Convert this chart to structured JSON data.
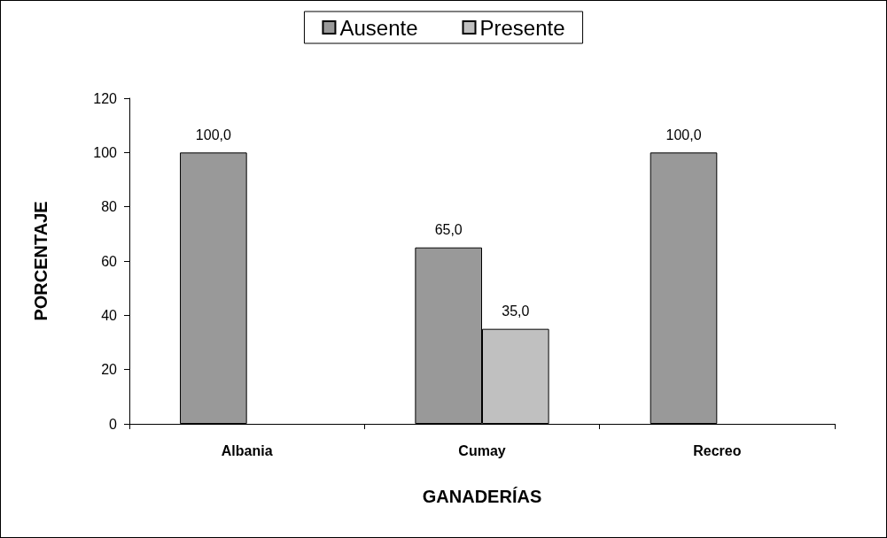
{
  "chart_data": {
    "type": "bar",
    "xlabel": "GANADERÍAS",
    "ylabel": "PORCENTAJE",
    "categories": [
      "Albania",
      "Cumay",
      "Recreo"
    ],
    "series": [
      {
        "name": "Ausente",
        "color": "#999999",
        "values": [
          100,
          65,
          100
        ],
        "value_labels": [
          "100,0",
          "65,0",
          "100,0"
        ]
      },
      {
        "name": "Presente",
        "color": "#c0c0c0",
        "values": [
          null,
          35,
          null
        ],
        "value_labels": [
          null,
          "35,0",
          null
        ]
      }
    ],
    "ylim": [
      0,
      120
    ],
    "yticks": [
      0,
      20,
      40,
      60,
      80,
      100,
      120
    ],
    "grid": false,
    "legend": "top"
  }
}
